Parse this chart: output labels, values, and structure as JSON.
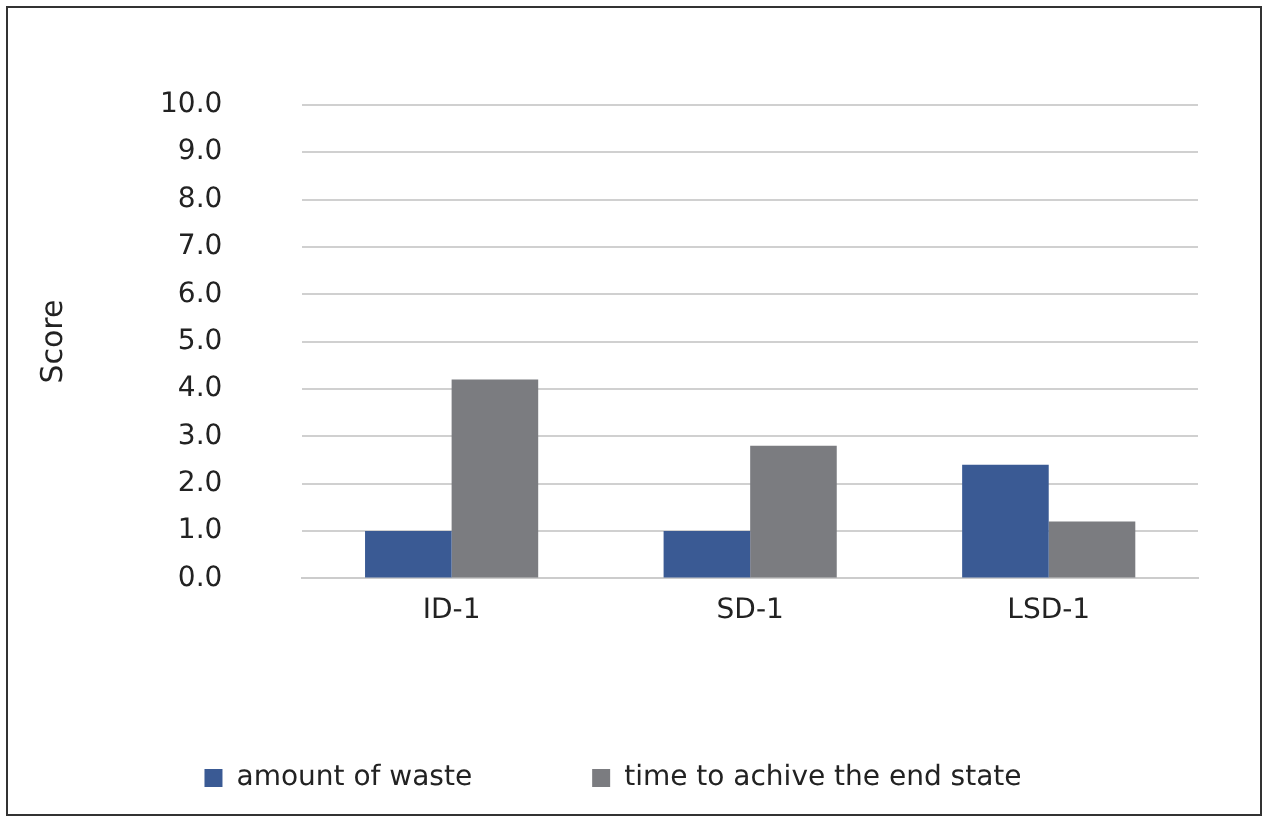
{
  "chart_data": {
    "type": "bar",
    "ylabel": "Score",
    "categories": [
      "ID-1",
      "SD-1",
      "LSD-1"
    ],
    "series": [
      {
        "name": "amount of waste",
        "color": "#3a5a94",
        "values": [
          1.0,
          1.0,
          2.4
        ]
      },
      {
        "name": "time to achive the end state",
        "color": "#7b7c80",
        "values": [
          4.2,
          2.8,
          1.2
        ]
      }
    ],
    "ylim": [
      0,
      10
    ],
    "yticks": [
      {
        "value": 0,
        "label": "0.0"
      },
      {
        "value": 1,
        "label": "1.0"
      },
      {
        "value": 2,
        "label": "2.0"
      },
      {
        "value": 3,
        "label": "3.0"
      },
      {
        "value": 4,
        "label": "4.0"
      },
      {
        "value": 5,
        "label": "5.0"
      },
      {
        "value": 6,
        "label": "6.0"
      },
      {
        "value": 7,
        "label": "7.0"
      },
      {
        "value": 8,
        "label": "8.0"
      },
      {
        "value": 9,
        "label": "9.0"
      },
      {
        "value": 10,
        "label": "10.0"
      }
    ],
    "grid": "y",
    "legend": "bottom"
  }
}
